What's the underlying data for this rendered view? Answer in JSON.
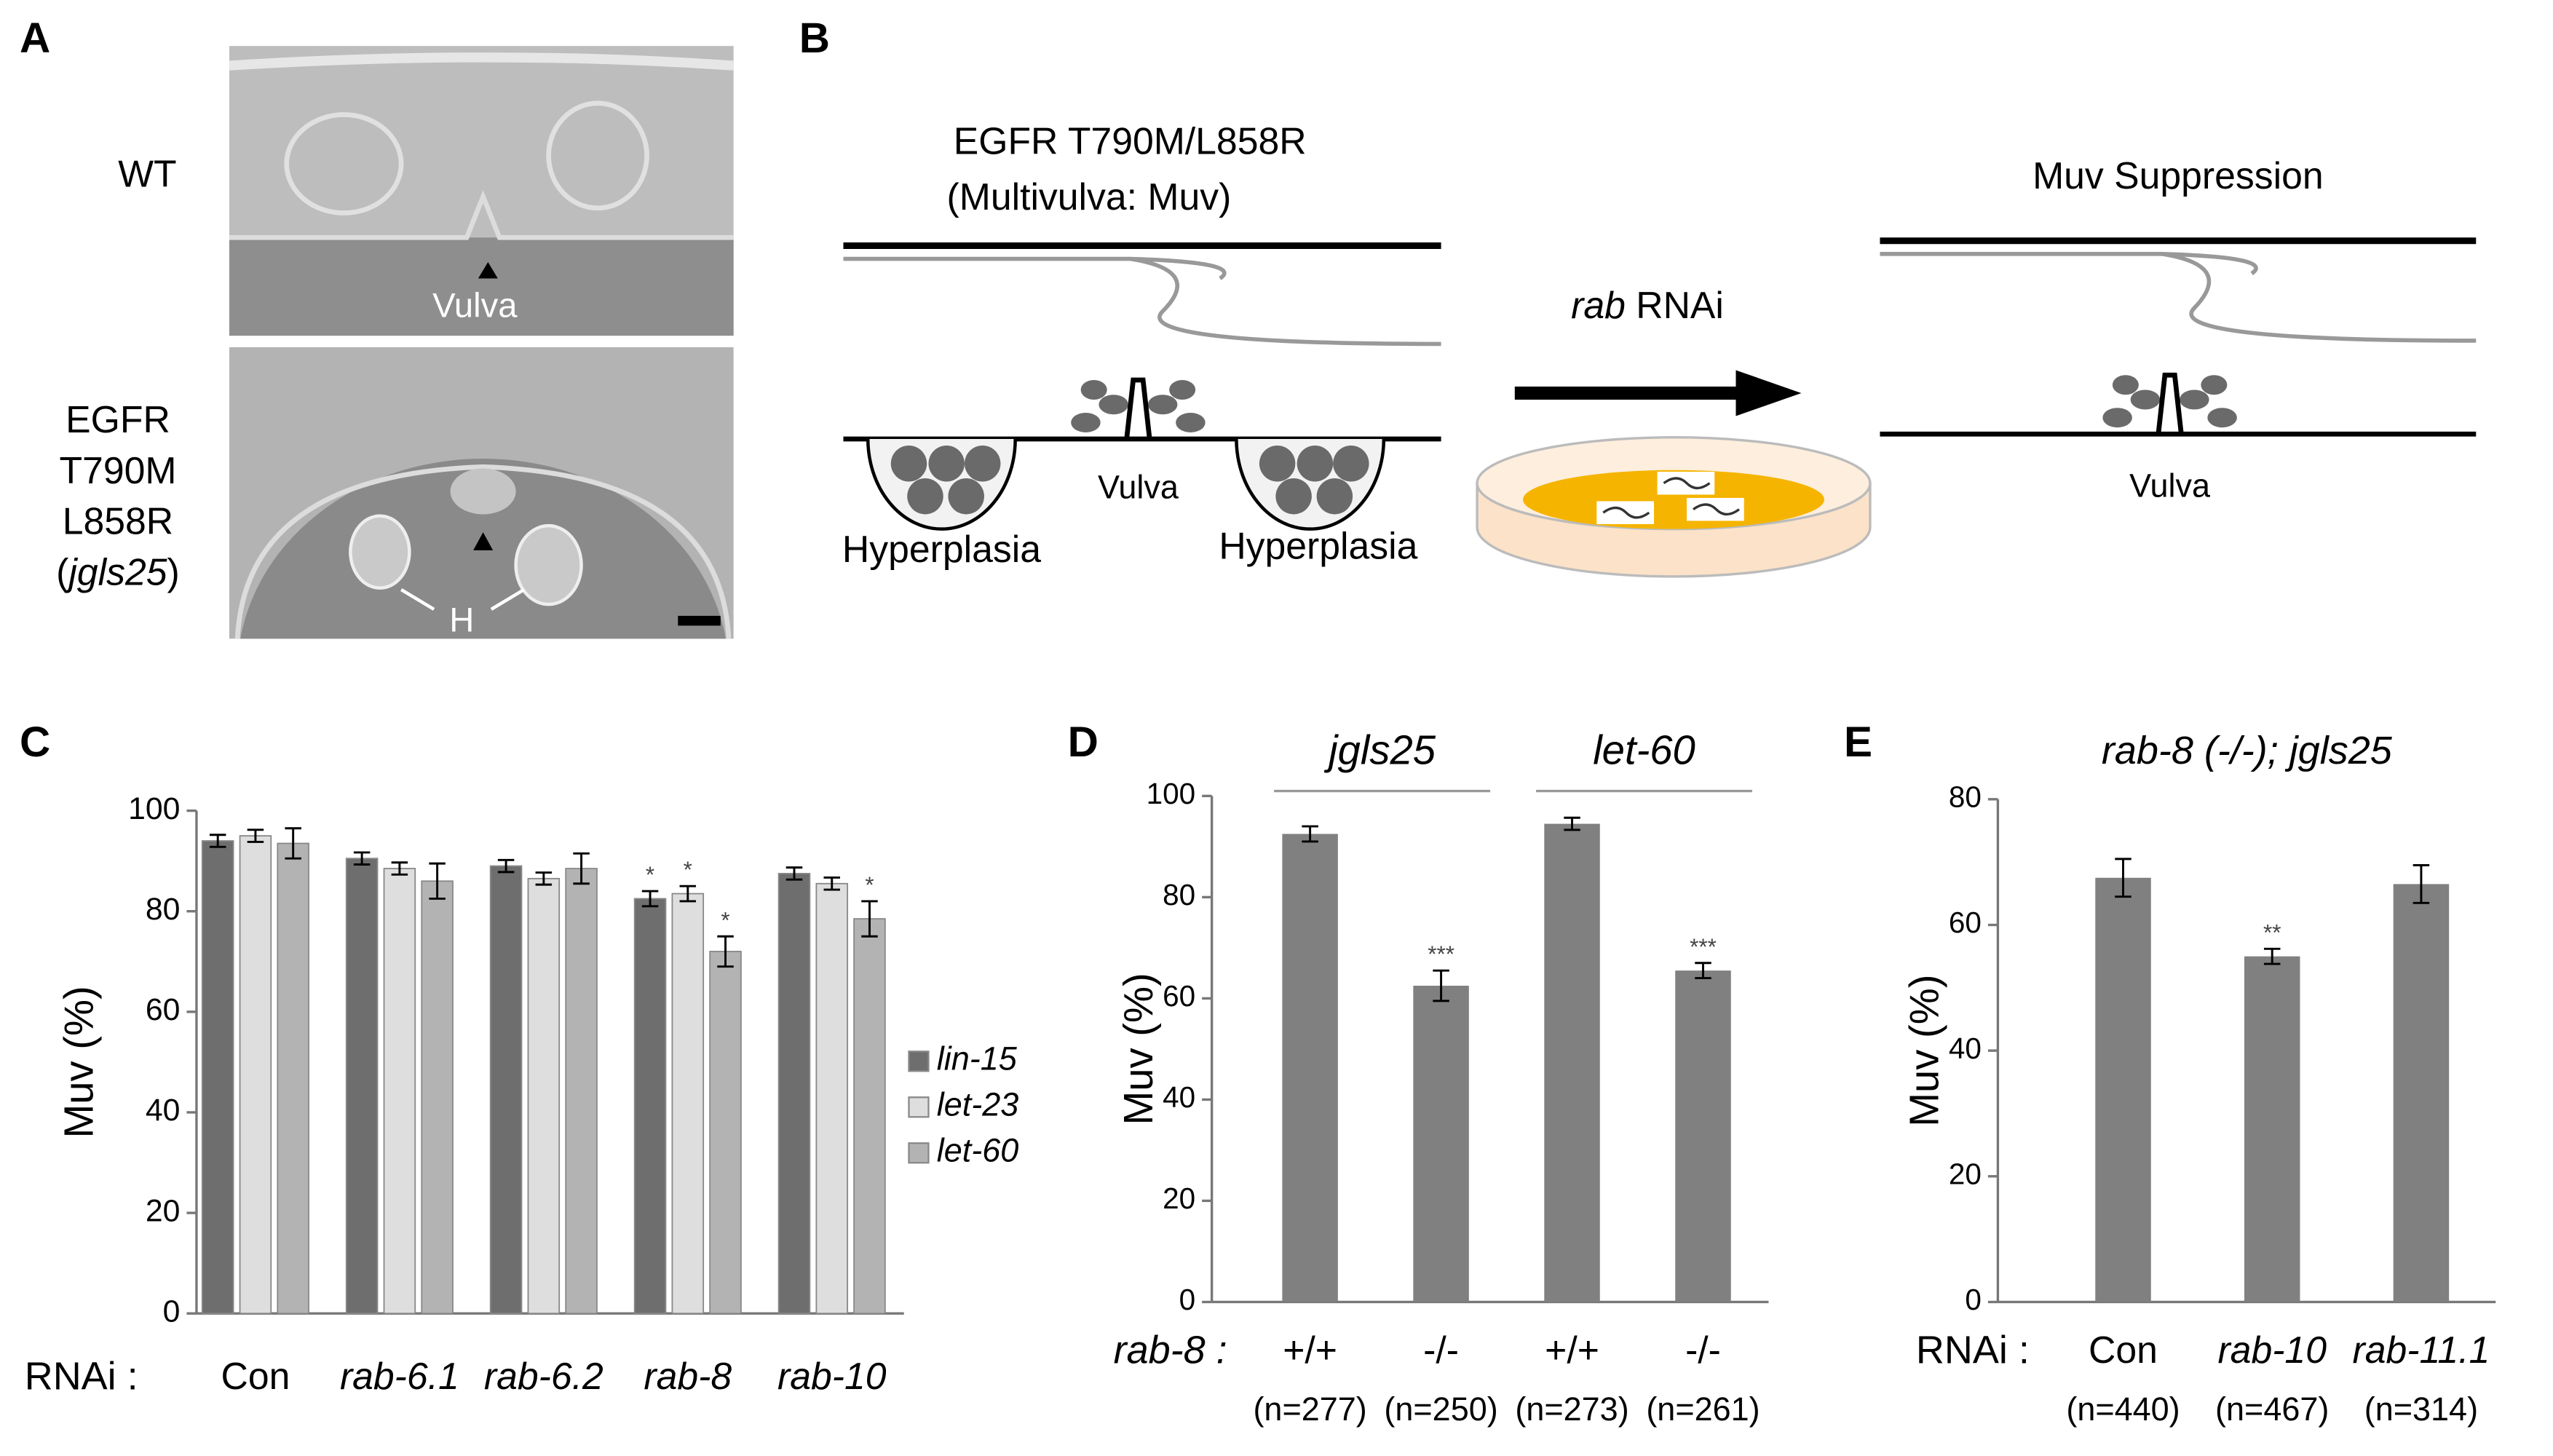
{
  "panel_labels": [
    "A",
    "B",
    "C",
    "D",
    "E"
  ],
  "panel_a": {
    "top_label": "WT",
    "vulva_label": "Vulva",
    "bottom_label": [
      "EGFR",
      "T790M",
      "L858R"
    ],
    "strain_label": [
      "(",
      "jgls25",
      ")"
    ],
    "hyperplasia_label": "H"
  },
  "panel_b": {
    "left_title": "EGFR T790M/L858R",
    "left_subtitle": "(Multivulva:  Muv)",
    "arrow_label": [
      "rab",
      "RNAi"
    ],
    "right_title": "Muv Suppression",
    "labels": [
      "Hyperplasia",
      "Vulva",
      "Hyperplasia",
      "Vulva"
    ]
  },
  "chart_data": [
    {
      "type": "bar",
      "xlabel": "RNAi :",
      "ylabel": "Muv (%)",
      "categories": [
        "Con",
        "rab-6.1",
        "rab-6.2",
        "rab-8",
        "rab-10"
      ],
      "series": [
        {
          "name": "lin-15",
          "color": "#6e6e6e",
          "values": [
            94,
            90.5,
            89,
            82.5,
            87.5
          ],
          "errors": [
            1.2,
            1.2,
            1.2,
            1.5,
            1.2
          ],
          "significance": [
            null,
            null,
            null,
            "*",
            null
          ]
        },
        {
          "name": "let-23",
          "color": "#dedede",
          "values": [
            95,
            88.5,
            86.5,
            83.5,
            85.5
          ],
          "errors": [
            1.2,
            1.2,
            1.2,
            1.5,
            1.2
          ],
          "significance": [
            null,
            null,
            null,
            "*",
            null
          ]
        },
        {
          "name": "let-60",
          "color": "#b3b3b3",
          "values": [
            93.5,
            86,
            88.5,
            72,
            78.5
          ],
          "errors": [
            3,
            3.5,
            3,
            3,
            3.5
          ],
          "significance": [
            null,
            null,
            null,
            "*",
            "*"
          ]
        }
      ],
      "ylim": [
        0,
        100
      ],
      "yticks": [
        0,
        20,
        40,
        60,
        80,
        100
      ],
      "legend": "right"
    },
    {
      "type": "bar",
      "xlabel": "rab-8 :",
      "ylabel": "Muv (%)",
      "groups": [
        "jgls25",
        "let-60"
      ],
      "categories": [
        "+/+",
        "-/-",
        "+/+",
        "-/-"
      ],
      "sample_sizes": [
        "(n=277)",
        "(n=250)",
        "(n=273)",
        "(n=261)"
      ],
      "color": "#808080",
      "values": [
        92.5,
        62.5,
        94.5,
        65.5
      ],
      "errors": [
        1.5,
        3,
        1.2,
        1.5
      ],
      "significance": [
        null,
        "***",
        null,
        "***"
      ],
      "ylim": [
        0,
        100
      ],
      "yticks": [
        0,
        20,
        40,
        60,
        80,
        100
      ]
    },
    {
      "type": "bar",
      "title": "rab-8 (-/-); jgls25",
      "xlabel": "RNAi :",
      "ylabel": "Muv (%)",
      "categories": [
        "Con",
        "rab-10",
        "rab-11.1"
      ],
      "sample_sizes": [
        "(n=440)",
        "(n=467)",
        "(n=314)"
      ],
      "color": "#808080",
      "values": [
        67.5,
        55,
        66.5
      ],
      "errors": [
        3,
        1.2,
        3
      ],
      "significance": [
        null,
        "**",
        null
      ],
      "ylim": [
        0,
        80
      ],
      "yticks": [
        0,
        20,
        40,
        60,
        80
      ]
    }
  ]
}
